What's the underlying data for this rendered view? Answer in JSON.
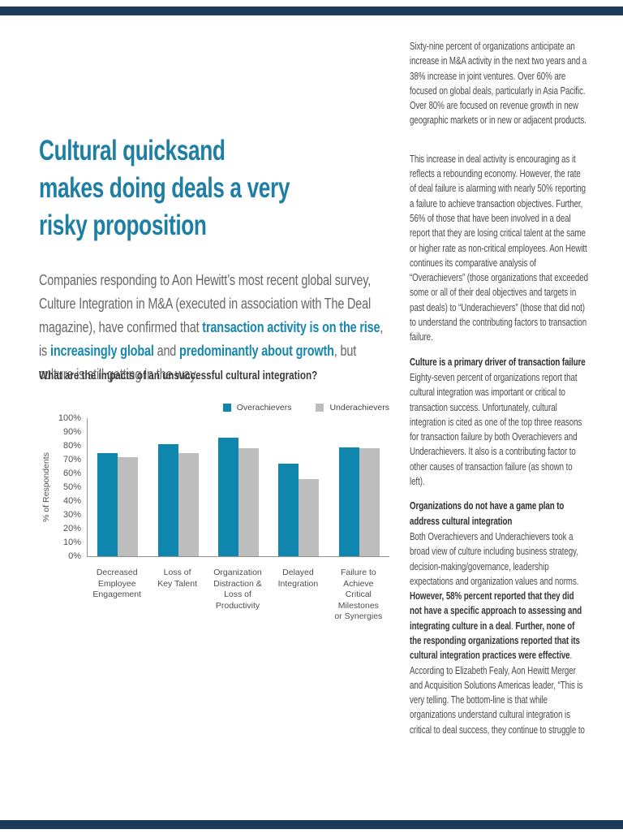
{
  "page": {
    "accent_color": "#1887ae",
    "heading_color": "#1e7ea4",
    "edge_bar_color": "#1c3a58"
  },
  "article": {
    "title_lines": [
      "Cultural quicksand",
      "makes doing deals a very",
      "risky proposition"
    ],
    "intro_segments": [
      {
        "t": "Companies responding to Aon Hewitt’s most recent global survey, Culture Integration in M&A (executed in association with The Deal magazine), have confirmed that ",
        "s": "n"
      },
      {
        "t": "transaction activity is on the rise",
        "s": "a"
      },
      {
        "t": ", is ",
        "s": "n"
      },
      {
        "t": "increasingly global",
        "s": "a"
      },
      {
        "t": " and ",
        "s": "n"
      },
      {
        "t": "predominantly about growth",
        "s": "a"
      },
      {
        "t": ", but culture is still getting in the way.",
        "s": "n"
      }
    ]
  },
  "chart_data": {
    "type": "bar",
    "title": "What are the impacts of an unsuccessful cultural integration?",
    "ylabel": "% of Respondents",
    "xlabel": "",
    "ylim": [
      0,
      100
    ],
    "ytick_step": 10,
    "ytick_labels": [
      "100%",
      "90%",
      "80%",
      "70%",
      "60%",
      "50%",
      "40%",
      "30%",
      "20%",
      "10%",
      "0%"
    ],
    "grid": false,
    "legend_position": "top-right",
    "categories": [
      "Decreased Employee Engagement",
      "Loss of Key Talent",
      "Organization Distraction & Loss of Productivity",
      "Delayed Integration",
      "Failure to Achieve Critical Milestones or Synergies"
    ],
    "category_label_lines": [
      [
        "Decreased",
        "Employee",
        "Engagement"
      ],
      [
        "Loss of",
        "Key Talent"
      ],
      [
        "Organization",
        "Distraction &",
        "Loss of",
        "Productivity"
      ],
      [
        "Delayed",
        "Integration"
      ],
      [
        "Failure to",
        "Achieve",
        "Critical",
        "Milestones",
        "or Synergies"
      ]
    ],
    "series": [
      {
        "name": "Overachievers",
        "color": "#0f86ad",
        "values": [
          75,
          81,
          86,
          67,
          79
        ]
      },
      {
        "name": "Underachievers",
        "color": "#bdbdbd",
        "values": [
          72,
          75,
          78,
          56,
          78
        ]
      }
    ]
  },
  "right_column": {
    "blocks": [
      {
        "type": "p",
        "segments": [
          {
            "t": "Sixty-nine percent of organizations anticipate an increase in M&A activity in the next two years and a 38% increase in joint ventures. Over 60% are focused on global deals, particularly in Asia Pacific. Over 80% are focused on revenue growth in new geographic markets or in new or adjacent products.",
            "s": "n"
          }
        ]
      },
      {
        "type": "p",
        "segments": [
          {
            "t": "This increase in deal activity is encouraging as it reflects a rebounding economy. However, the rate of deal failure is alarming with nearly 50% reporting a failure to achieve transaction objectives. Further, 56% of those that have been involved in a deal report that they are losing critical talent at the same or higher rate as non-critical employees. Aon Hewitt continues its comparative analysis of “Overachievers” (those organizations that exceeded some or all of their deal objectives and targets in past deals) to “Underachievers” (those that did not) to understand the contributing factors to transaction failure.",
            "s": "n"
          }
        ]
      },
      {
        "type": "h",
        "text": "Culture is a primary driver of transaction failure"
      },
      {
        "type": "p",
        "segments": [
          {
            "t": "Eighty-seven percent of organizations report that cultural integration was important or critical to transaction success. Unfortunately, cultural integration is cited as one of the top three reasons for transaction failure by both Overachievers and Underachievers. It also is a contributing factor to other causes of transaction failure (as shown to left).",
            "s": "n"
          }
        ]
      },
      {
        "type": "h",
        "text": "Organizations do not have a game plan to address cultural integration"
      },
      {
        "type": "p",
        "segments": [
          {
            "t": "Both Overachievers and Underachievers took a broad view of culture including business strategy, decision-making/governance, leadership expectations and organization values and norms. ",
            "s": "n"
          },
          {
            "t": "However, 58% percent reported that they did not have a specific approach to assessing and integrating culture in a deal",
            "s": "b"
          },
          {
            "t": ". ",
            "s": "n"
          },
          {
            "t": "Further, none of the responding organizations reported that its cultural integration practices were effective",
            "s": "b"
          },
          {
            "t": ". According to Elizabeth Fealy, Aon Hewitt Merger and Acquisition Solutions Americas leader, “This is very telling. The bottom-line is that while organizations understand cultural integration is critical to deal success, they continue to struggle to",
            "s": "n"
          }
        ]
      }
    ]
  }
}
